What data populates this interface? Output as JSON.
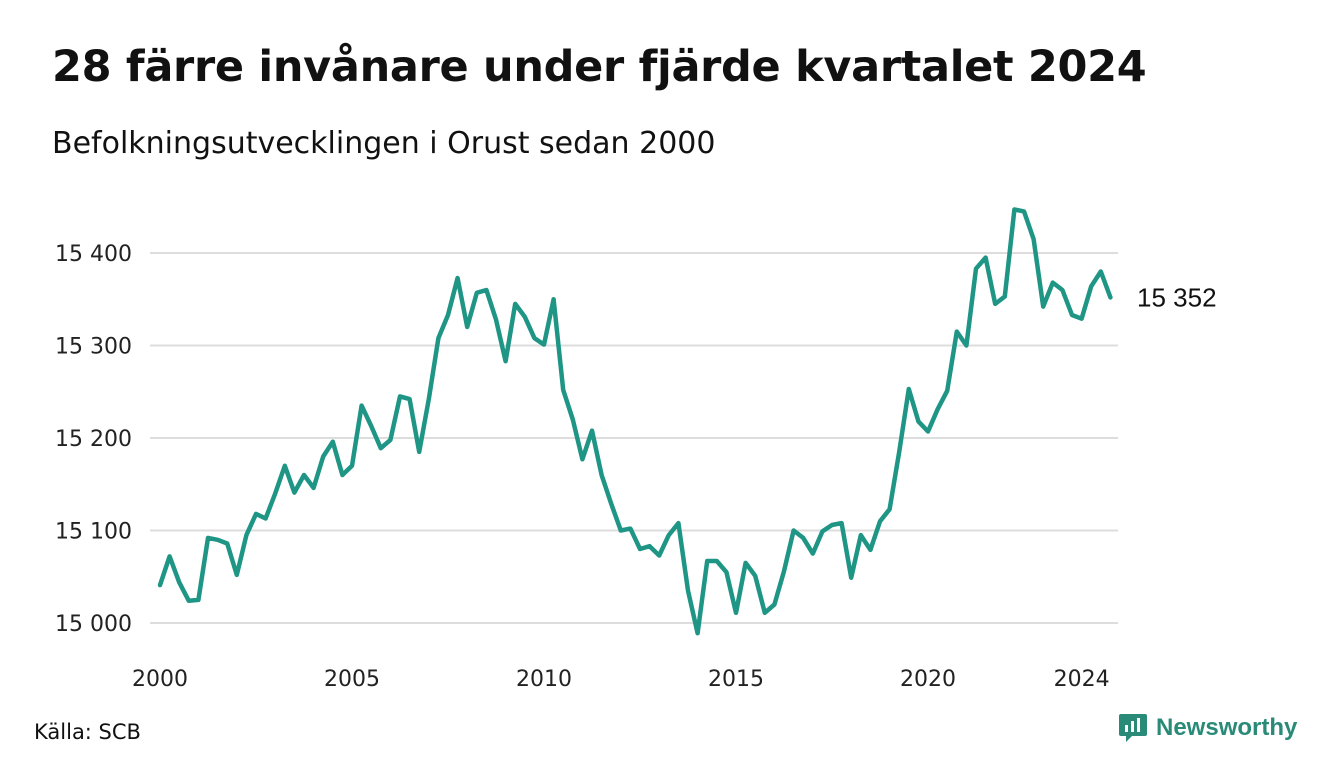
{
  "header": {
    "title": "28 färre invånare under fjärde kvartalet 2024",
    "subtitle": "Befolkningsutvecklingen i Orust sedan 2000"
  },
  "footer": {
    "source": "Källa: SCB",
    "brand": "Newsworthy"
  },
  "colors": {
    "line": "#1f9685",
    "grid": "#dddddd",
    "brand": "#2a8a78"
  },
  "chart_data": {
    "type": "line",
    "title": "28 färre invånare under fjärde kvartalet 2024",
    "subtitle": "Befolkningsutvecklingen i Orust sedan 2000",
    "xlabel": "",
    "ylabel": "",
    "xlim": [
      2000,
      2025
    ],
    "ylim": [
      14990,
      15470
    ],
    "grid": "horizontal",
    "y_ticks": [
      15000,
      15100,
      15200,
      15300,
      15400
    ],
    "y_tick_labels": [
      "15 000",
      "15 100",
      "15 200",
      "15 300",
      "15 400"
    ],
    "x_ticks": [
      2000,
      2005,
      2010,
      2015,
      2020,
      2024
    ],
    "x_tick_labels": [
      "2000",
      "2005",
      "2010",
      "2015",
      "2020",
      "2024"
    ],
    "end_label": "15 352",
    "series": [
      {
        "values": [
          [
            2000.0,
            15041
          ],
          [
            2000.25,
            15072
          ],
          [
            2000.5,
            15044
          ],
          [
            2000.75,
            15024
          ],
          [
            2001.0,
            15025
          ],
          [
            2001.25,
            15092
          ],
          [
            2001.5,
            15090
          ],
          [
            2001.75,
            15086
          ],
          [
            2002.0,
            15052
          ],
          [
            2002.25,
            15095
          ],
          [
            2002.5,
            15118
          ],
          [
            2002.75,
            15113
          ],
          [
            2003.0,
            15140
          ],
          [
            2003.25,
            15170
          ],
          [
            2003.5,
            15141
          ],
          [
            2003.75,
            15160
          ],
          [
            2004.0,
            15146
          ],
          [
            2004.25,
            15180
          ],
          [
            2004.5,
            15196
          ],
          [
            2004.75,
            15160
          ],
          [
            2005.0,
            15170
          ],
          [
            2005.25,
            15235
          ],
          [
            2005.5,
            15213
          ],
          [
            2005.75,
            15189
          ],
          [
            2006.0,
            15198
          ],
          [
            2006.25,
            15245
          ],
          [
            2006.5,
            15242
          ],
          [
            2006.75,
            15185
          ],
          [
            2007.0,
            15242
          ],
          [
            2007.25,
            15308
          ],
          [
            2007.5,
            15333
          ],
          [
            2007.75,
            15373
          ],
          [
            2008.0,
            15320
          ],
          [
            2008.25,
            15357
          ],
          [
            2008.5,
            15360
          ],
          [
            2008.75,
            15328
          ],
          [
            2009.0,
            15283
          ],
          [
            2009.25,
            15345
          ],
          [
            2009.5,
            15331
          ],
          [
            2009.75,
            15308
          ],
          [
            2010.0,
            15301
          ],
          [
            2010.25,
            15350
          ],
          [
            2010.5,
            15252
          ],
          [
            2010.75,
            15220
          ],
          [
            2011.0,
            15177
          ],
          [
            2011.25,
            15208
          ],
          [
            2011.5,
            15160
          ],
          [
            2011.75,
            15129
          ],
          [
            2012.0,
            15100
          ],
          [
            2012.25,
            15102
          ],
          [
            2012.5,
            15080
          ],
          [
            2012.75,
            15083
          ],
          [
            2013.0,
            15073
          ],
          [
            2013.25,
            15095
          ],
          [
            2013.5,
            15108
          ],
          [
            2013.75,
            15035
          ],
          [
            2014.0,
            14989
          ],
          [
            2014.25,
            15067
          ],
          [
            2014.5,
            15067
          ],
          [
            2014.75,
            15055
          ],
          [
            2015.0,
            15011
          ],
          [
            2015.25,
            15065
          ],
          [
            2015.5,
            15051
          ],
          [
            2015.75,
            15011
          ],
          [
            2016.0,
            15020
          ],
          [
            2016.25,
            15056
          ],
          [
            2016.5,
            15100
          ],
          [
            2016.75,
            15092
          ],
          [
            2017.0,
            15075
          ],
          [
            2017.25,
            15099
          ],
          [
            2017.5,
            15106
          ],
          [
            2017.75,
            15108
          ],
          [
            2018.0,
            15049
          ],
          [
            2018.25,
            15095
          ],
          [
            2018.5,
            15079
          ],
          [
            2018.75,
            15110
          ],
          [
            2019.0,
            15123
          ],
          [
            2019.25,
            15185
          ],
          [
            2019.5,
            15253
          ],
          [
            2019.75,
            15218
          ],
          [
            2020.0,
            15207
          ],
          [
            2020.25,
            15231
          ],
          [
            2020.5,
            15251
          ],
          [
            2020.75,
            15315
          ],
          [
            2021.0,
            15300
          ],
          [
            2021.25,
            15383
          ],
          [
            2021.5,
            15395
          ],
          [
            2021.75,
            15345
          ],
          [
            2022.0,
            15353
          ],
          [
            2022.25,
            15447
          ],
          [
            2022.5,
            15445
          ],
          [
            2022.75,
            15415
          ],
          [
            2023.0,
            15342
          ],
          [
            2023.25,
            15368
          ],
          [
            2023.5,
            15360
          ],
          [
            2023.75,
            15333
          ],
          [
            2024.0,
            15329
          ],
          [
            2024.25,
            15364
          ],
          [
            2024.5,
            15380
          ],
          [
            2024.75,
            15352
          ]
        ]
      }
    ]
  }
}
